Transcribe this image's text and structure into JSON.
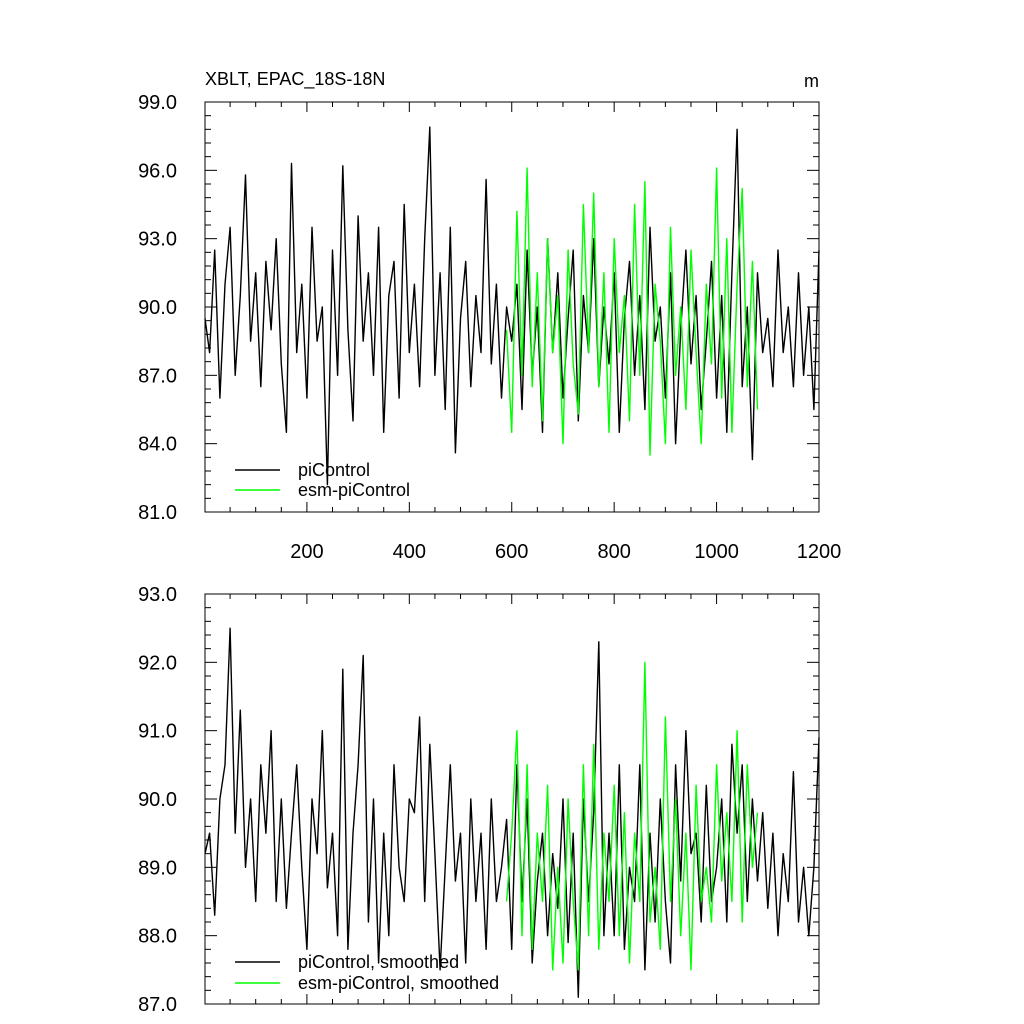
{
  "chart_data": [
    {
      "type": "line",
      "title": "XBLT, EPAC_18S-18N",
      "units_label": "m",
      "xlim": [
        1,
        1200
      ],
      "ylim": [
        81.0,
        99.0
      ],
      "x_major_ticks": [
        200,
        400,
        600,
        800,
        1000,
        1200
      ],
      "x_tick_labels": [
        "200",
        "400",
        "600",
        "800",
        "1000",
        "1200"
      ],
      "y_major_ticks": [
        81.0,
        84.0,
        87.0,
        90.0,
        93.0,
        96.0,
        99.0
      ],
      "y_tick_labels": [
        "81.0",
        "84.0",
        "87.0",
        "90.0",
        "93.0",
        "96.0",
        "99.0"
      ],
      "legend_position": "bottom-left",
      "series": [
        {
          "name": "piControl",
          "color": "#000000",
          "x": [
            1,
            10,
            20,
            30,
            40,
            50,
            60,
            70,
            80,
            90,
            100,
            110,
            120,
            130,
            140,
            150,
            160,
            170,
            180,
            190,
            200,
            210,
            220,
            230,
            240,
            250,
            260,
            270,
            280,
            290,
            300,
            310,
            320,
            330,
            340,
            350,
            360,
            370,
            380,
            390,
            400,
            410,
            420,
            430,
            440,
            450,
            460,
            470,
            480,
            490,
            500,
            510,
            520,
            530,
            540,
            550,
            560,
            570,
            580,
            590,
            600,
            610,
            620,
            630,
            640,
            650,
            660,
            670,
            680,
            690,
            700,
            710,
            720,
            730,
            740,
            750,
            760,
            770,
            780,
            790,
            800,
            810,
            820,
            830,
            840,
            850,
            860,
            870,
            880,
            890,
            900,
            910,
            920,
            930,
            940,
            950,
            960,
            970,
            980,
            990,
            1000,
            1010,
            1020,
            1030,
            1040,
            1050,
            1060,
            1070,
            1080,
            1090,
            1100,
            1110,
            1120,
            1130,
            1140,
            1150,
            1160,
            1170,
            1180,
            1190,
            1200
          ],
          "values": [
            89.5,
            88.0,
            92.5,
            86.0,
            91.0,
            93.5,
            87.0,
            90.5,
            95.8,
            88.5,
            91.5,
            86.5,
            92.0,
            89.0,
            93.0,
            87.5,
            84.5,
            96.3,
            88.0,
            91.0,
            86.0,
            93.5,
            88.5,
            90.0,
            82.2,
            92.5,
            87.0,
            96.2,
            89.0,
            85.0,
            94.0,
            88.5,
            91.5,
            87.0,
            93.5,
            84.5,
            90.5,
            92.0,
            86.0,
            94.5,
            88.0,
            91.0,
            86.5,
            93.0,
            97.9,
            87.0,
            91.5,
            85.5,
            93.5,
            83.6,
            89.5,
            92.0,
            86.5,
            90.5,
            88.0,
            95.6,
            87.5,
            91.0,
            86.0,
            90.0,
            88.5,
            91.0,
            85.5,
            92.5,
            87.0,
            90.0,
            84.5,
            93.0,
            88.0,
            91.5,
            86.0,
            89.5,
            92.5,
            85.0,
            90.5,
            88.0,
            93.0,
            86.5,
            90.0,
            87.5,
            91.5,
            84.5,
            89.5,
            92.0,
            87.0,
            90.5,
            85.5,
            93.5,
            88.5,
            90.0,
            86.0,
            91.5,
            84.0,
            89.0,
            92.5,
            87.5,
            90.5,
            85.5,
            88.5,
            92.0,
            86.0,
            90.5,
            84.5,
            91.5,
            97.8,
            86.5,
            90.0,
            83.3,
            91.5,
            88.0,
            89.5,
            86.5,
            92.5,
            88.0,
            90.0,
            86.5,
            91.5,
            87.0,
            90.0,
            85.5,
            92.5
          ]
        },
        {
          "name": "esm-piControl",
          "color": "#00ff00",
          "x": [
            590,
            600,
            610,
            620,
            630,
            640,
            650,
            660,
            670,
            680,
            690,
            700,
            710,
            720,
            730,
            740,
            750,
            760,
            770,
            780,
            790,
            800,
            810,
            820,
            830,
            840,
            850,
            860,
            870,
            880,
            890,
            900,
            910,
            920,
            930,
            940,
            950,
            960,
            970,
            980,
            990,
            1000,
            1010,
            1020,
            1030,
            1040,
            1050,
            1060,
            1070,
            1080
          ],
          "values": [
            89.0,
            84.5,
            94.2,
            87.0,
            96.1,
            86.5,
            91.5,
            85.0,
            93.0,
            88.0,
            90.5,
            84.0,
            92.5,
            87.5,
            85.3,
            94.5,
            88.0,
            95.0,
            86.5,
            91.5,
            84.5,
            93.0,
            88.0,
            90.5,
            85.0,
            94.5,
            87.0,
            95.5,
            83.5,
            91.0,
            88.5,
            84.0,
            93.5,
            87.0,
            90.0,
            85.5,
            92.5,
            88.0,
            84.0,
            91.0,
            87.5,
            96.1,
            86.0,
            93.0,
            84.5,
            91.0,
            95.2,
            86.5,
            92.0,
            85.5
          ]
        }
      ]
    },
    {
      "type": "line",
      "xlim": [
        1,
        1200
      ],
      "ylim": [
        87.0,
        93.0
      ],
      "x_major_ticks": [
        200,
        400,
        600,
        800,
        1000,
        1200
      ],
      "y_major_ticks": [
        87.0,
        88.0,
        89.0,
        90.0,
        91.0,
        92.0,
        93.0
      ],
      "y_tick_labels": [
        "87.0",
        "88.0",
        "89.0",
        "90.0",
        "91.0",
        "92.0",
        "93.0"
      ],
      "legend_position": "bottom-left",
      "series": [
        {
          "name": "piControl, smoothed",
          "color": "#000000",
          "x": [
            1,
            10,
            20,
            30,
            40,
            50,
            60,
            70,
            80,
            90,
            100,
            110,
            120,
            130,
            140,
            150,
            160,
            170,
            180,
            190,
            200,
            210,
            220,
            230,
            240,
            250,
            260,
            270,
            280,
            290,
            300,
            310,
            320,
            330,
            340,
            350,
            360,
            370,
            380,
            390,
            400,
            410,
            420,
            430,
            440,
            450,
            460,
            470,
            480,
            490,
            500,
            510,
            520,
            530,
            540,
            550,
            560,
            570,
            580,
            590,
            600,
            610,
            620,
            630,
            640,
            650,
            660,
            670,
            680,
            690,
            700,
            710,
            720,
            730,
            740,
            750,
            760,
            770,
            780,
            790,
            800,
            810,
            820,
            830,
            840,
            850,
            860,
            870,
            880,
            890,
            900,
            910,
            920,
            930,
            940,
            950,
            960,
            970,
            980,
            990,
            1000,
            1010,
            1020,
            1030,
            1040,
            1050,
            1060,
            1070,
            1080,
            1090,
            1100,
            1110,
            1120,
            1130,
            1140,
            1150,
            1160,
            1170,
            1180,
            1190,
            1200
          ],
          "values": [
            89.2,
            89.5,
            88.3,
            90.0,
            90.5,
            92.5,
            89.5,
            91.3,
            89.0,
            90.0,
            88.5,
            90.5,
            89.5,
            91.0,
            88.5,
            90.0,
            88.4,
            89.5,
            90.5,
            89.0,
            87.8,
            90.0,
            89.2,
            91.0,
            88.7,
            89.5,
            88.0,
            91.9,
            87.8,
            89.5,
            90.5,
            92.1,
            88.2,
            90.0,
            87.6,
            89.5,
            88.0,
            90.5,
            89.0,
            88.5,
            90.0,
            89.8,
            91.2,
            88.5,
            90.8,
            89.2,
            87.5,
            89.0,
            90.5,
            88.8,
            89.5,
            87.6,
            90.0,
            88.5,
            89.5,
            87.8,
            90.0,
            88.5,
            89.0,
            89.7,
            87.8,
            90.5,
            88.5,
            90.0,
            87.6,
            88.8,
            89.5,
            88.0,
            89.2,
            88.4,
            90.0,
            87.9,
            89.5,
            87.1,
            90.0,
            88.5,
            89.8,
            92.3,
            88.0,
            89.5,
            88.0,
            90.5,
            87.8,
            89.0,
            88.5,
            90.5,
            87.5,
            89.5,
            88.2,
            90.0,
            88.5,
            87.6,
            90.5,
            88.8,
            91.0,
            89.2,
            89.5,
            88.2,
            90.2,
            88.5,
            89.0,
            90.0,
            88.2,
            90.8,
            89.5,
            90.5,
            88.5,
            90.0,
            88.8,
            89.8,
            88.4,
            89.5,
            88.0,
            89.2,
            88.5,
            90.4,
            88.2,
            89.0,
            88.0,
            89.0,
            90.9
          ]
        },
        {
          "name": "esm-piControl, smoothed",
          "color": "#00ff00",
          "x": [
            590,
            600,
            610,
            620,
            630,
            640,
            650,
            660,
            670,
            680,
            690,
            700,
            710,
            720,
            730,
            740,
            750,
            760,
            770,
            780,
            790,
            800,
            810,
            820,
            830,
            840,
            850,
            860,
            870,
            880,
            890,
            900,
            910,
            920,
            930,
            940,
            950,
            960,
            970,
            980,
            990,
            1000,
            1010,
            1020,
            1030,
            1040,
            1050,
            1060,
            1070,
            1080
          ],
          "values": [
            88.5,
            89.5,
            91.0,
            88.0,
            90.5,
            87.8,
            89.5,
            88.5,
            90.2,
            87.5,
            89.0,
            87.6,
            90.0,
            88.5,
            87.5,
            90.5,
            88.0,
            90.8,
            87.8,
            89.5,
            88.5,
            90.2,
            88.0,
            89.8,
            87.6,
            89.5,
            88.5,
            92.0,
            88.2,
            89.0,
            87.8,
            91.2,
            88.5,
            90.0,
            88.0,
            89.5,
            87.5,
            90.2,
            88.5,
            89.0,
            88.2,
            90.5,
            88.8,
            89.8,
            88.5,
            91.0,
            88.2,
            90.5,
            89.0,
            89.8
          ]
        }
      ]
    }
  ]
}
